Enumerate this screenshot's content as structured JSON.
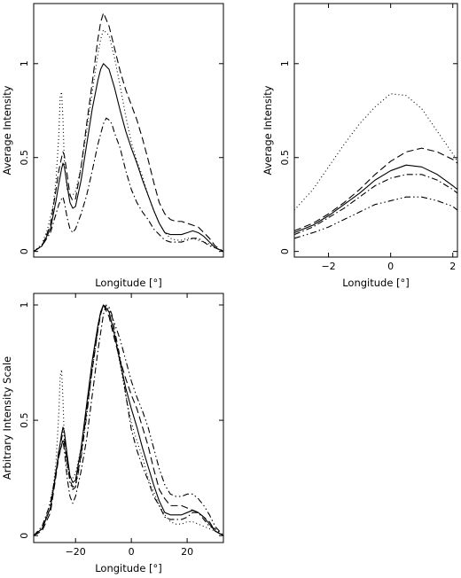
{
  "chart_data": [
    {
      "type": "line",
      "panel": "top-left",
      "xlabel": "Longitude [°]",
      "ylabel": "Average Intensity",
      "xlim": [
        -35,
        33
      ],
      "ylim": [
        -0.03,
        1.32
      ],
      "xticks": [],
      "yticks": [
        0,
        0.5,
        1
      ],
      "ytick_labels": [
        "0",
        "0.5",
        "1"
      ],
      "grid": false,
      "series": [
        {
          "style": "solid",
          "x": [
            -35,
            -32,
            -29,
            -27,
            -26,
            -25,
            -24.5,
            -24,
            -23,
            -22,
            -21,
            -20,
            -18,
            -16,
            -14,
            -12,
            -11,
            -10,
            -8,
            -6,
            -4,
            -2,
            0,
            2,
            4,
            6,
            8,
            10,
            12,
            14,
            16,
            18,
            20,
            22,
            24,
            26,
            28,
            30,
            33
          ],
          "y": [
            0,
            0.03,
            0.12,
            0.27,
            0.36,
            0.44,
            0.47,
            0.45,
            0.35,
            0.26,
            0.23,
            0.24,
            0.38,
            0.57,
            0.76,
            0.91,
            0.97,
            1.0,
            0.97,
            0.87,
            0.75,
            0.64,
            0.55,
            0.47,
            0.38,
            0.3,
            0.22,
            0.15,
            0.1,
            0.09,
            0.09,
            0.09,
            0.1,
            0.11,
            0.1,
            0.08,
            0.05,
            0.02,
            0.0
          ]
        },
        {
          "style": "dashed",
          "x": [
            -35,
            -32,
            -29,
            -27,
            -26,
            -25,
            -24.5,
            -24,
            -23,
            -22,
            -21,
            -20,
            -18,
            -16,
            -14,
            -12,
            -11,
            -10,
            -8,
            -6,
            -4,
            -2,
            0,
            2,
            4,
            6,
            8,
            10,
            12,
            14,
            16,
            18,
            20,
            22,
            24,
            26,
            28,
            30,
            33
          ],
          "y": [
            0,
            0.03,
            0.14,
            0.33,
            0.43,
            0.5,
            0.53,
            0.51,
            0.41,
            0.3,
            0.27,
            0.28,
            0.45,
            0.68,
            0.9,
            1.13,
            1.22,
            1.27,
            1.2,
            1.08,
            0.96,
            0.86,
            0.78,
            0.7,
            0.6,
            0.49,
            0.37,
            0.26,
            0.2,
            0.17,
            0.16,
            0.16,
            0.15,
            0.14,
            0.13,
            0.1,
            0.07,
            0.03,
            0.0
          ]
        },
        {
          "style": "dotted",
          "x": [
            -35,
            -32,
            -30,
            -28,
            -27,
            -26,
            -25.5,
            -25,
            -24.5,
            -24,
            -23,
            -22,
            -21,
            -20,
            -18,
            -16,
            -14,
            -12,
            -11,
            -10,
            -8,
            -6,
            -4,
            -2,
            0,
            2,
            4,
            6,
            8,
            10,
            12,
            14,
            16,
            18,
            20,
            22,
            24,
            26,
            28,
            30,
            33
          ],
          "y": [
            0,
            0.04,
            0.12,
            0.25,
            0.38,
            0.62,
            0.82,
            0.85,
            0.7,
            0.47,
            0.33,
            0.3,
            0.3,
            0.32,
            0.45,
            0.64,
            0.85,
            1.05,
            1.13,
            1.18,
            1.15,
            1.03,
            0.88,
            0.72,
            0.58,
            0.48,
            0.4,
            0.3,
            0.22,
            0.15,
            0.1,
            0.07,
            0.06,
            0.06,
            0.07,
            0.07,
            0.06,
            0.05,
            0.04,
            0.02,
            0.0
          ]
        },
        {
          "style": "dash-dot",
          "x": [
            -35,
            -32,
            -29,
            -27,
            -26,
            -25,
            -24.5,
            -24,
            -23,
            -22,
            -21,
            -20,
            -18,
            -16,
            -14,
            -12,
            -10,
            -9,
            -8,
            -7,
            -6,
            -4,
            -2,
            0,
            2,
            4,
            6,
            8,
            10,
            12,
            14,
            16,
            18,
            20,
            22,
            24,
            26,
            28,
            30,
            33
          ],
          "y": [
            0,
            0.03,
            0.1,
            0.2,
            0.25,
            0.28,
            0.29,
            0.26,
            0.18,
            0.12,
            0.1,
            0.12,
            0.2,
            0.3,
            0.43,
            0.57,
            0.68,
            0.71,
            0.7,
            0.68,
            0.63,
            0.55,
            0.43,
            0.33,
            0.26,
            0.21,
            0.17,
            0.12,
            0.09,
            0.06,
            0.05,
            0.05,
            0.05,
            0.06,
            0.07,
            0.07,
            0.05,
            0.03,
            0.02,
            0.0
          ]
        }
      ]
    },
    {
      "type": "line",
      "panel": "top-right",
      "xlabel": "Longitude [°]",
      "ylabel": "Average Intensity",
      "xlim": [
        -3.1,
        2.15
      ],
      "ylim": [
        -0.03,
        1.32
      ],
      "xticks": [
        -2,
        0,
        2
      ],
      "xtick_labels": [
        "−2",
        "0",
        "2"
      ],
      "yticks": [
        0,
        0.5,
        1
      ],
      "ytick_labels": [
        "0",
        "0.5",
        "1"
      ],
      "grid": false,
      "series": [
        {
          "style": "solid",
          "x": [
            -3.1,
            -2.5,
            -2,
            -1.5,
            -1,
            -0.5,
            0,
            0.5,
            1,
            1.5,
            2,
            2.15
          ],
          "y": [
            0.1,
            0.14,
            0.19,
            0.25,
            0.31,
            0.38,
            0.43,
            0.46,
            0.45,
            0.41,
            0.35,
            0.33
          ]
        },
        {
          "style": "dashed",
          "x": [
            -3.1,
            -2.5,
            -2,
            -1.5,
            -1,
            -0.5,
            0,
            0.5,
            1,
            1.5,
            2,
            2.15
          ],
          "y": [
            0.11,
            0.15,
            0.2,
            0.26,
            0.33,
            0.41,
            0.48,
            0.53,
            0.55,
            0.53,
            0.49,
            0.47
          ]
        },
        {
          "style": "dotted",
          "x": [
            -3.1,
            -2.5,
            -2,
            -1.5,
            -1,
            -0.5,
            0,
            0.5,
            1,
            1.5,
            2,
            2.15
          ],
          "y": [
            0.22,
            0.33,
            0.45,
            0.57,
            0.68,
            0.77,
            0.84,
            0.83,
            0.76,
            0.64,
            0.52,
            0.48
          ]
        },
        {
          "style": "dash-dot",
          "x": [
            -3.1,
            -2.5,
            -2,
            -1.5,
            -1,
            -0.5,
            0,
            0.5,
            1,
            1.5,
            2,
            2.15
          ],
          "y": [
            0.09,
            0.13,
            0.18,
            0.23,
            0.29,
            0.35,
            0.39,
            0.41,
            0.41,
            0.38,
            0.33,
            0.31
          ]
        },
        {
          "style": "dash-dot-dot",
          "x": [
            -3.1,
            -2.5,
            -2,
            -1.5,
            -1,
            -0.5,
            0,
            0.5,
            1,
            1.5,
            2,
            2.15
          ],
          "y": [
            0.07,
            0.1,
            0.13,
            0.17,
            0.21,
            0.25,
            0.27,
            0.29,
            0.29,
            0.27,
            0.24,
            0.22
          ]
        }
      ]
    },
    {
      "type": "line",
      "panel": "bottom-left",
      "xlabel": "Longitude [°]",
      "ylabel": "Arbitrary Intensity Scale",
      "xlim": [
        -35,
        33
      ],
      "ylim": [
        -0.03,
        1.05
      ],
      "xticks": [
        -20,
        0,
        20
      ],
      "xtick_labels": [
        "−20",
        "0",
        "20"
      ],
      "yticks": [
        0,
        0.5,
        1
      ],
      "ytick_labels": [
        "0",
        "0.5",
        "1"
      ],
      "grid": false,
      "series": [
        {
          "style": "solid",
          "x": [
            -35,
            -32,
            -29,
            -27,
            -26,
            -25,
            -24.5,
            -24,
            -23,
            -22,
            -21,
            -20,
            -18,
            -16,
            -14,
            -12,
            -11,
            -10,
            -8,
            -6,
            -4,
            -2,
            0,
            2,
            4,
            6,
            8,
            10,
            12,
            14,
            16,
            18,
            20,
            22,
            24,
            26,
            28,
            30,
            33
          ],
          "y": [
            0,
            0.03,
            0.12,
            0.27,
            0.36,
            0.44,
            0.47,
            0.45,
            0.35,
            0.26,
            0.23,
            0.24,
            0.38,
            0.57,
            0.76,
            0.91,
            0.97,
            1.0,
            0.97,
            0.87,
            0.75,
            0.64,
            0.55,
            0.47,
            0.38,
            0.3,
            0.22,
            0.15,
            0.1,
            0.09,
            0.09,
            0.09,
            0.1,
            0.11,
            0.1,
            0.08,
            0.05,
            0.02,
            0.0
          ]
        },
        {
          "style": "dashed",
          "x": [
            -35,
            -32,
            -29,
            -27,
            -26,
            -25,
            -24.5,
            -24,
            -23,
            -22,
            -21,
            -20,
            -18,
            -16,
            -14,
            -12,
            -11,
            -10,
            -8,
            -6,
            -4,
            -2,
            0,
            2,
            4,
            6,
            8,
            10,
            12,
            14,
            16,
            18,
            20,
            22,
            24,
            26,
            28,
            30,
            33
          ],
          "y": [
            0,
            0.02,
            0.1,
            0.26,
            0.34,
            0.39,
            0.42,
            0.4,
            0.32,
            0.24,
            0.21,
            0.22,
            0.35,
            0.54,
            0.72,
            0.89,
            0.96,
            1.0,
            0.95,
            0.85,
            0.76,
            0.68,
            0.61,
            0.55,
            0.47,
            0.39,
            0.29,
            0.2,
            0.16,
            0.13,
            0.13,
            0.13,
            0.12,
            0.11,
            0.1,
            0.08,
            0.06,
            0.02,
            0.0
          ]
        },
        {
          "style": "dotted",
          "x": [
            -35,
            -32,
            -30,
            -28,
            -27,
            -26,
            -25.5,
            -25,
            -24.5,
            -24,
            -23,
            -22,
            -21,
            -20,
            -18,
            -16,
            -14,
            -12,
            -11,
            -10,
            -8,
            -6,
            -4,
            -2,
            0,
            2,
            4,
            6,
            8,
            10,
            12,
            14,
            16,
            18,
            20,
            22,
            24,
            26,
            28,
            30,
            33
          ],
          "y": [
            0,
            0.03,
            0.1,
            0.21,
            0.32,
            0.53,
            0.69,
            0.72,
            0.59,
            0.4,
            0.28,
            0.25,
            0.25,
            0.27,
            0.38,
            0.54,
            0.72,
            0.89,
            0.96,
            1.0,
            0.97,
            0.87,
            0.74,
            0.61,
            0.49,
            0.41,
            0.34,
            0.25,
            0.19,
            0.13,
            0.09,
            0.06,
            0.05,
            0.05,
            0.06,
            0.06,
            0.05,
            0.04,
            0.03,
            0.02,
            0.0
          ]
        },
        {
          "style": "dash-dot",
          "x": [
            -35,
            -32,
            -29,
            -27,
            -26,
            -25,
            -24.5,
            -24,
            -23,
            -22,
            -21,
            -20,
            -18,
            -16,
            -14,
            -12,
            -10,
            -9,
            -8,
            -7,
            -6,
            -4,
            -2,
            0,
            2,
            4,
            6,
            8,
            10,
            12,
            14,
            16,
            18,
            20,
            22,
            24,
            26,
            28,
            30,
            33
          ],
          "y": [
            0,
            0.04,
            0.14,
            0.28,
            0.35,
            0.39,
            0.41,
            0.37,
            0.25,
            0.17,
            0.14,
            0.17,
            0.28,
            0.42,
            0.61,
            0.8,
            0.96,
            1.0,
            0.99,
            0.96,
            0.89,
            0.77,
            0.61,
            0.46,
            0.37,
            0.3,
            0.24,
            0.17,
            0.13,
            0.08,
            0.07,
            0.07,
            0.07,
            0.08,
            0.1,
            0.1,
            0.07,
            0.04,
            0.03,
            0.0
          ]
        },
        {
          "style": "dash-dot-dot",
          "x": [
            -35,
            -32,
            -29,
            -27,
            -26,
            -25,
            -24.5,
            -24,
            -23,
            -22,
            -21,
            -20,
            -18,
            -16,
            -14,
            -12,
            -11,
            -10,
            -8,
            -6,
            -4,
            -2,
            0,
            2,
            4,
            6,
            8,
            10,
            12,
            14,
            16,
            18,
            20,
            22,
            24,
            26,
            28,
            30,
            33
          ],
          "y": [
            0,
            0.03,
            0.12,
            0.28,
            0.37,
            0.42,
            0.45,
            0.43,
            0.33,
            0.23,
            0.2,
            0.21,
            0.34,
            0.52,
            0.73,
            0.9,
            0.97,
            1.0,
            0.98,
            0.92,
            0.85,
            0.76,
            0.67,
            0.6,
            0.54,
            0.47,
            0.38,
            0.29,
            0.22,
            0.18,
            0.17,
            0.17,
            0.18,
            0.18,
            0.16,
            0.13,
            0.09,
            0.04,
            0.0
          ]
        }
      ]
    }
  ],
  "style": {
    "line_color": "#000000",
    "background": "#ffffff"
  }
}
